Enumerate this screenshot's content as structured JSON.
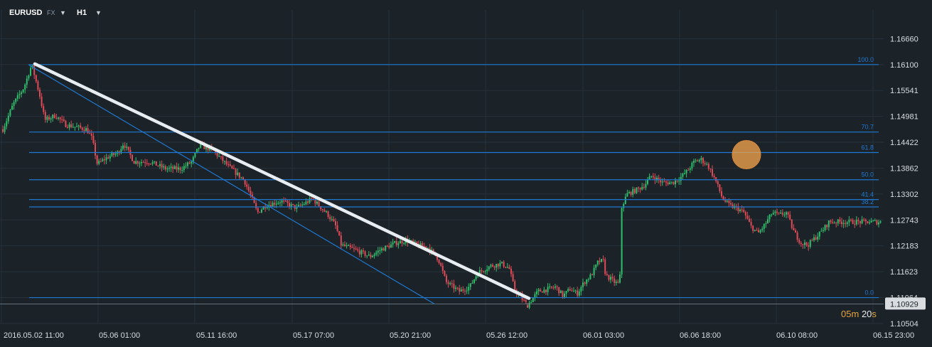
{
  "header": {
    "symbol": "EURUSD",
    "market": "FX",
    "timeframe": "H1",
    "market_caret_icon": "caret-down-icon",
    "timeframe_caret_icon": "caret-down-icon"
  },
  "countdown": {
    "minutes": "05",
    "m_unit": "m",
    "seconds": "20",
    "s_unit": "s"
  },
  "colors": {
    "background": "#1b2329",
    "grid": "#26313a",
    "up": "#2fbf6b",
    "down": "#e04a56",
    "fib": "#1f78d1",
    "trend_main": "#e8edf2",
    "highlight": "#f0a34a",
    "text": "#d8dde2",
    "current_price_bg": "#d9dde0"
  },
  "chart_data": {
    "type": "candlestick",
    "symbol": "EURUSD",
    "timeframe": "H1",
    "ylim": [
      1.10504,
      1.17219
    ],
    "y_ticks": [
      "1.16660",
      "1.16100",
      "1.15541",
      "1.14981",
      "1.14422",
      "1.13862",
      "1.13302",
      "1.12743",
      "1.12183",
      "1.11623",
      "1.11064",
      "1.10504"
    ],
    "current_price": "1.10929",
    "x_ticks": [
      "2016.05.02  11:00",
      "05.06  01:00",
      "05.11  16:00",
      "05.17  07:00",
      "05.20  21:00",
      "05.26  12:00",
      "06.01  03:00",
      "06.06  18:00",
      "06.10  08:00",
      "06.15  23:00"
    ],
    "close_path": [
      [
        0,
        1.147
      ],
      [
        0.02,
        1.1525
      ],
      [
        0.04,
        1.156
      ],
      [
        0.055,
        1.161
      ],
      [
        0.07,
        1.1545
      ],
      [
        0.08,
        1.149
      ],
      [
        0.1,
        1.15
      ],
      [
        0.12,
        1.148
      ],
      [
        0.14,
        1.1475
      ],
      [
        0.16,
        1.147
      ],
      [
        0.17,
        1.145
      ],
      [
        0.18,
        1.1395
      ],
      [
        0.2,
        1.141
      ],
      [
        0.22,
        1.142
      ],
      [
        0.23,
        1.144
      ],
      [
        0.25,
        1.14
      ],
      [
        0.28,
        1.14
      ],
      [
        0.31,
        1.1385
      ],
      [
        0.34,
        1.1385
      ],
      [
        0.36,
        1.14
      ],
      [
        0.375,
        1.1435
      ],
      [
        0.4,
        1.1425
      ],
      [
        0.43,
        1.139
      ],
      [
        0.46,
        1.136
      ],
      [
        0.475,
        1.132
      ],
      [
        0.485,
        1.129
      ],
      [
        0.5,
        1.1305
      ],
      [
        0.53,
        1.1315
      ],
      [
        0.56,
        1.13
      ],
      [
        0.59,
        1.132
      ],
      [
        0.62,
        1.1285
      ],
      [
        0.635,
        1.126
      ],
      [
        0.645,
        1.122
      ],
      [
        0.67,
        1.121
      ],
      [
        0.7,
        1.1195
      ],
      [
        0.72,
        1.121
      ],
      [
        0.75,
        1.1225
      ],
      [
        0.77,
        1.123
      ],
      [
        0.79,
        1.122
      ],
      [
        0.81,
        1.1215
      ],
      [
        0.83,
        1.119
      ],
      [
        0.845,
        1.114
      ],
      [
        0.87,
        1.112
      ],
      [
        0.89,
        1.113
      ],
      [
        0.905,
        1.116
      ],
      [
        0.93,
        1.1175
      ],
      [
        0.95,
        1.118
      ],
      [
        0.965,
        1.117
      ],
      [
        0.975,
        1.1125
      ],
      [
        0.985,
        1.111
      ],
      [
        1.0,
        1.109
      ]
    ],
    "close_path_2": [
      [
        0,
        1.109
      ],
      [
        0.03,
        1.112
      ],
      [
        0.06,
        1.1125
      ],
      [
        0.08,
        1.113
      ],
      [
        0.1,
        1.111
      ],
      [
        0.12,
        1.1125
      ],
      [
        0.14,
        1.1115
      ],
      [
        0.16,
        1.114
      ],
      [
        0.18,
        1.1155
      ],
      [
        0.2,
        1.1185
      ],
      [
        0.215,
        1.1185
      ],
      [
        0.22,
        1.1155
      ],
      [
        0.245,
        1.114
      ],
      [
        0.26,
        1.1135
      ],
      [
        0.265,
        1.13
      ],
      [
        0.28,
        1.133
      ],
      [
        0.31,
        1.134
      ],
      [
        0.33,
        1.135
      ],
      [
        0.35,
        1.137
      ],
      [
        0.38,
        1.1355
      ],
      [
        0.41,
        1.1355
      ],
      [
        0.43,
        1.1365
      ],
      [
        0.45,
        1.138
      ],
      [
        0.47,
        1.14
      ],
      [
        0.49,
        1.1405
      ],
      [
        0.51,
        1.139
      ],
      [
        0.53,
        1.136
      ],
      [
        0.55,
        1.132
      ],
      [
        0.57,
        1.1305
      ],
      [
        0.59,
        1.13
      ],
      [
        0.61,
        1.129
      ],
      [
        0.63,
        1.126
      ],
      [
        0.65,
        1.1245
      ],
      [
        0.67,
        1.1265
      ],
      [
        0.69,
        1.129
      ],
      [
        0.71,
        1.1285
      ],
      [
        0.73,
        1.129
      ],
      [
        0.75,
        1.125
      ],
      [
        0.77,
        1.1225
      ],
      [
        0.79,
        1.122
      ],
      [
        0.81,
        1.1235
      ],
      [
        0.83,
        1.125
      ],
      [
        0.85,
        1.127
      ]
    ],
    "fibonacci": {
      "levels": [
        {
          "label": "100.0",
          "price": 1.161
        },
        {
          "label": "70.7",
          "price": 1.14642
        },
        {
          "label": "61.8",
          "price": 1.14199
        },
        {
          "label": "50.0",
          "price": 1.13612
        },
        {
          "label": "41.4",
          "price": 1.13184
        },
        {
          "label": "38.2",
          "price": 1.13024
        },
        {
          "label": "0.0",
          "price": 1.11064
        }
      ]
    },
    "trendlines": [
      {
        "name": "main-trendline",
        "from": {
          "x": "2016.05.02 19:00",
          "price": 1.161
        },
        "to": {
          "x": "05.26 12:00",
          "price": 1.11064
        }
      },
      {
        "name": "channel-line",
        "from": {
          "x": "2016.05.02 17:00",
          "price": 1.161
        },
        "to": {
          "x": "05.23 12:00",
          "price": 1.11064
        }
      }
    ],
    "highlight_marker": {
      "x": "06.08 10:00",
      "price": 1.14199
    }
  }
}
